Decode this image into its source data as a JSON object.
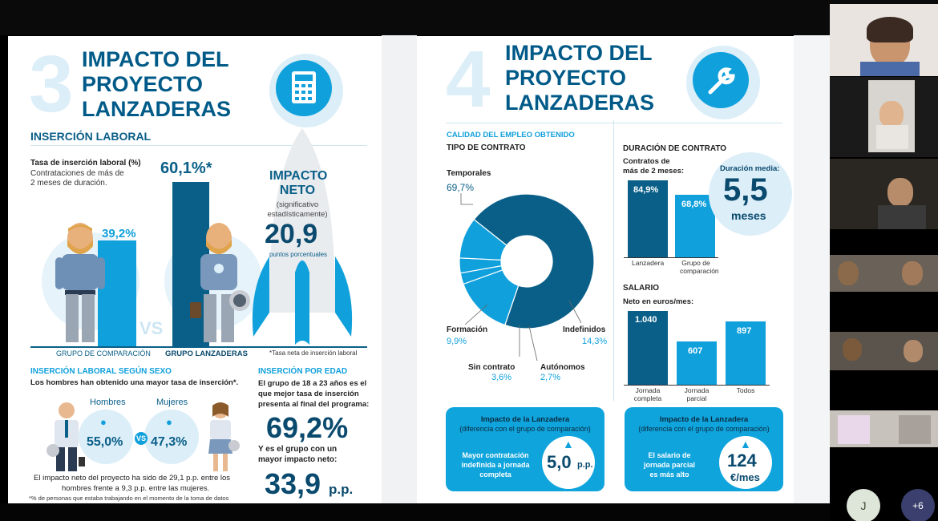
{
  "left_panel": {
    "number": "3",
    "title": [
      "IMPACTO DEL",
      "PROYECTO",
      "LANZADERAS"
    ],
    "subtitle": "INSERCIÓN LABORAL",
    "icon": "calculator-icon",
    "rate_title": "Tasa de inserción laboral (%)",
    "rate_desc": [
      "Contrataciones de más de",
      "2 meses de duración."
    ],
    "comparison_value": "39,2%",
    "lanzaderas_value": "60,1%*",
    "vs": "VS",
    "comparison_label": "GRUPO DE COMPARACIÓN",
    "lanzaderas_label": "GRUPO LANZADERAS",
    "impact_title": [
      "IMPACTO",
      "NETO"
    ],
    "impact_note": [
      "(significativo",
      "estadísticamente)"
    ],
    "impact_value": "20,9",
    "impact_unit": "puntos porcentuales",
    "footnote_rate": "*Tasa neta de inserción laboral",
    "sex_title": "INSERCIÓN LABORAL SEGÚN SEXO",
    "sex_text": "Los hombres han obtenido una mayor tasa de inserción*.",
    "men_label": "Hombres",
    "women_label": "Mujeres",
    "men_value": "55,0%",
    "women_value": "47,3%",
    "sex_vs": "VS",
    "sex_footer": [
      "El impacto neto del proyecto ha sido de 29,1 p.p. entre los",
      "hombres frente a 9,3 p.p. entre las mujeres."
    ],
    "sex_footnote": "*% de personas que estaba trabajando en el momento de la toma de datos",
    "age_title": "INSERCIÓN POR EDAD",
    "age_text": [
      "El grupo de 18 a 23 años es el",
      "que mejor tasa de inserción",
      "presenta al final del programa:"
    ],
    "age_value": "69,2%",
    "age_text2": [
      "Y es el grupo con un",
      "mayor impacto neto:"
    ],
    "age_value2": "33,9",
    "age_unit2": "p.p."
  },
  "right_panel": {
    "number": "4",
    "title": [
      "IMPACTO DEL",
      "PROYECTO",
      "LANZADERAS"
    ],
    "icon": "wrench-icon",
    "quality_title": "CALIDAD DEL EMPLEO OBTENIDO",
    "contract_type_title": "TIPO DE CONTRATO",
    "donut": [
      {
        "label": "Temporales",
        "value": "69,7%"
      },
      {
        "label": "Formación",
        "value": "9,9%"
      },
      {
        "label": "Sin contrato",
        "value": "3,6%"
      },
      {
        "label": "Autónomos",
        "value": "2,7%"
      },
      {
        "label": "Indefinidos",
        "value": "14,3%"
      }
    ],
    "duration_title": "DURACIÓN DE CONTRATO",
    "duration_sub": [
      "Contratos de",
      "más de 2 meses:"
    ],
    "duration_bars": [
      {
        "label": "Lanzadera",
        "value": "84,9%"
      },
      {
        "label": "Grupo de comparación",
        "value": "68,8%"
      }
    ],
    "duration_media_label": "Duración media:",
    "duration_media_value": "5,5",
    "duration_media_unit": "meses",
    "salary_title": "SALARIO",
    "salary_sub": "Neto en euros/mes:",
    "salary_bars": [
      {
        "label": "Jornada completa",
        "value": "1.040"
      },
      {
        "label": "Jornada parcial",
        "value": "607"
      },
      {
        "label": "Todos",
        "value": "897"
      }
    ],
    "box1": {
      "title": "Impacto de la Lanzadera",
      "sub": "(diferencia con el grupo de comparación)",
      "text": [
        "Mayor contratación",
        "indefinida a jornada",
        "completa"
      ],
      "value": "5,0",
      "unit": "p.p."
    },
    "box2": {
      "title": "Impacto de la Lanzadera",
      "sub": "(diferencia con el grupo de comparación)",
      "text": [
        "El salario de",
        "jornada parcial",
        "es más alto"
      ],
      "value": "124",
      "unit": "€/mes"
    }
  },
  "meeting": {
    "participant_initial": "J",
    "more_count": "+6"
  },
  "colors": {
    "dark_blue": "#005a88",
    "mid_blue": "#0a5f88",
    "light_blue": "#10a4dc",
    "pale_blue": "#dceef8"
  }
}
